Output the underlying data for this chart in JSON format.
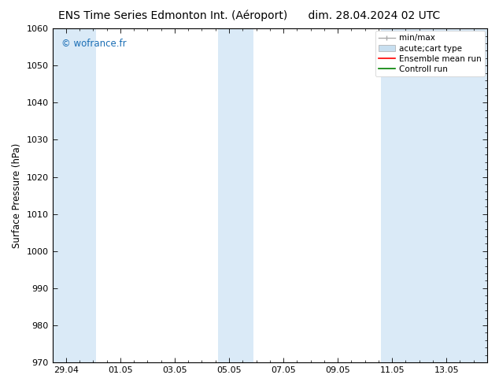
{
  "title_left": "ENS Time Series Edmonton Int. (Aéroport)",
  "title_right": "dim. 28.04.2024 02 UTC",
  "ylabel": "Surface Pressure (hPa)",
  "ylim": [
    970,
    1060
  ],
  "yticks": [
    970,
    980,
    990,
    1000,
    1010,
    1020,
    1030,
    1040,
    1050,
    1060
  ],
  "xtick_labels": [
    "29.04",
    "01.05",
    "03.05",
    "05.05",
    "07.05",
    "09.05",
    "11.05",
    "13.05"
  ],
  "xtick_positions": [
    0,
    2,
    4,
    6,
    8,
    10,
    12,
    14
  ],
  "xlim": [
    -0.5,
    15.5
  ],
  "shaded_bands": [
    {
      "xmin": -0.5,
      "xmax": 1.1
    },
    {
      "xmin": 5.6,
      "xmax": 6.9
    },
    {
      "xmin": 11.6,
      "xmax": 15.5
    }
  ],
  "band_color": "#daeaf7",
  "watermark_text": "© wofrance.fr",
  "watermark_color": "#1a6eb5",
  "bg_color": "#ffffff",
  "legend_entries": [
    {
      "label": "min/max"
    },
    {
      "label": "acute;cart type"
    },
    {
      "label": "Ensemble mean run"
    },
    {
      "label": "Controll run"
    }
  ],
  "legend_minmax_color": "#aaaaaa",
  "legend_band_color": "#c8dff0",
  "legend_mean_color": "#ff0000",
  "legend_ctrl_color": "#008000",
  "title_fontsize": 10,
  "tick_fontsize": 8,
  "ylabel_fontsize": 8.5,
  "legend_fontsize": 7.5
}
